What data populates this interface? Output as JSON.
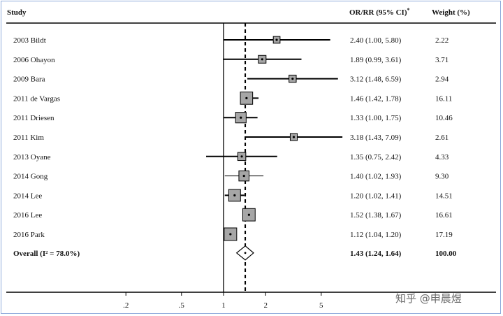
{
  "header": {
    "study": "Study",
    "or_rr": "OR/RR (95% CI)",
    "or_rr_mark": "*",
    "weight": "Weight (%)"
  },
  "watermark": "知乎 @申晨煜",
  "chart_data": {
    "type": "forest",
    "x_scale": "log",
    "xlim": [
      0.1,
      8.5
    ],
    "ticks": [
      0.2,
      0.5,
      1,
      2,
      5
    ],
    "tick_labels": [
      ".2",
      ".5",
      "1",
      "2",
      "5"
    ],
    "null_value": 1,
    "studies": [
      {
        "label": "2003 Bildt",
        "or": 2.4,
        "lo": 1.0,
        "hi": 5.8,
        "ci_text": "2.40 (1.00, 5.80)",
        "weight": 2.22,
        "weight_text": "2.22"
      },
      {
        "label": "2006 Ohayon",
        "or": 1.89,
        "lo": 0.99,
        "hi": 3.61,
        "ci_text": "1.89 (0.99, 3.61)",
        "weight": 3.71,
        "weight_text": "3.71"
      },
      {
        "label": "2009 Bara",
        "or": 3.12,
        "lo": 1.48,
        "hi": 6.59,
        "ci_text": "3.12 (1.48, 6.59)",
        "weight": 2.94,
        "weight_text": "2.94"
      },
      {
        "label": "2011 de Vargas",
        "or": 1.46,
        "lo": 1.42,
        "hi": 1.78,
        "ci_text": "1.46 (1.42, 1.78)",
        "weight": 16.11,
        "weight_text": "16.11"
      },
      {
        "label": "2011 Driesen",
        "or": 1.33,
        "lo": 1.0,
        "hi": 1.75,
        "ci_text": "1.33 (1.00, 1.75)",
        "weight": 10.46,
        "weight_text": "10.46"
      },
      {
        "label": "2011 Kim",
        "or": 3.18,
        "lo": 1.43,
        "hi": 7.09,
        "ci_text": "3.18 (1.43, 7.09)",
        "weight": 2.61,
        "weight_text": "2.61"
      },
      {
        "label": "2013 Oyane",
        "or": 1.35,
        "lo": 0.75,
        "hi": 2.42,
        "ci_text": "1.35 (0.75, 2.42)",
        "weight": 4.33,
        "weight_text": "4.33"
      },
      {
        "label": "2014 Gong",
        "or": 1.4,
        "lo": 1.02,
        "hi": 1.93,
        "ci_text": "1.40 (1.02, 1.93)",
        "weight": 9.3,
        "weight_text": "9.30"
      },
      {
        "label": "2014 Lee",
        "or": 1.2,
        "lo": 1.02,
        "hi": 1.41,
        "ci_text": "1.20 (1.02, 1.41)",
        "weight": 14.51,
        "weight_text": "14.51"
      },
      {
        "label": "2016 Lee",
        "or": 1.52,
        "lo": 1.38,
        "hi": 1.67,
        "ci_text": "1.52 (1.38, 1.67)",
        "weight": 16.61,
        "weight_text": "16.61"
      },
      {
        "label": "2016 Park",
        "or": 1.12,
        "lo": 1.04,
        "hi": 1.2,
        "ci_text": "1.12 (1.04, 1.20)",
        "weight": 17.19,
        "weight_text": "17.19"
      }
    ],
    "overall": {
      "label": "Overall  (I² = 78.0%)",
      "or": 1.43,
      "lo": 1.24,
      "hi": 1.64,
      "ci_text": "1.43 (1.24, 1.64)",
      "weight_text": "100.00"
    }
  }
}
